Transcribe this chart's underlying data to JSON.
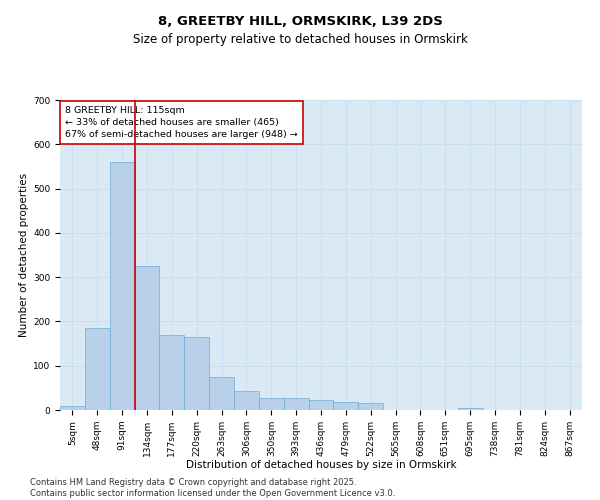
{
  "title1": "8, GREETBY HILL, ORMSKIRK, L39 2DS",
  "title2": "Size of property relative to detached houses in Ormskirk",
  "xlabel": "Distribution of detached houses by size in Ormskirk",
  "ylabel": "Number of detached properties",
  "bar_labels": [
    "5sqm",
    "48sqm",
    "91sqm",
    "134sqm",
    "177sqm",
    "220sqm",
    "263sqm",
    "306sqm",
    "350sqm",
    "393sqm",
    "436sqm",
    "479sqm",
    "522sqm",
    "565sqm",
    "608sqm",
    "651sqm",
    "695sqm",
    "738sqm",
    "781sqm",
    "824sqm",
    "867sqm"
  ],
  "bar_values": [
    8,
    185,
    560,
    325,
    170,
    165,
    75,
    42,
    28,
    28,
    22,
    18,
    15,
    0,
    0,
    0,
    5,
    0,
    0,
    0,
    0
  ],
  "bar_color": "#b8d0ea",
  "bar_edge_color": "#6baed6",
  "ylim": [
    0,
    700
  ],
  "yticks": [
    0,
    100,
    200,
    300,
    400,
    500,
    600,
    700
  ],
  "grid_color": "#ccdded",
  "bg_color": "#daeaf5",
  "red_line_color": "#cc0000",
  "red_line_x": 2.5,
  "annotation_text": "8 GREETBY HILL: 115sqm\n← 33% of detached houses are smaller (465)\n67% of semi-detached houses are larger (948) →",
  "annotation_box_color": "#cc0000",
  "footnote": "Contains HM Land Registry data © Crown copyright and database right 2025.\nContains public sector information licensed under the Open Government Licence v3.0.",
  "title_fontsize": 9.5,
  "subtitle_fontsize": 8.5,
  "axis_label_fontsize": 7.5,
  "tick_fontsize": 6.5,
  "annotation_fontsize": 6.8,
  "footnote_fontsize": 6.0
}
